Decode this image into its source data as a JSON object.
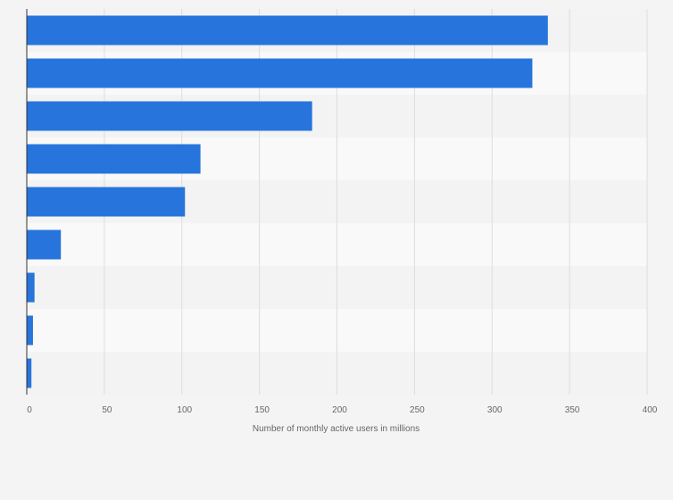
{
  "chart_data": {
    "type": "bar",
    "orientation": "horizontal",
    "categories": [
      "",
      "",
      "",
      "",
      "",
      "",
      "",
      "",
      ""
    ],
    "values": [
      336,
      326,
      184,
      112,
      102,
      22,
      5,
      4,
      3
    ],
    "title": "",
    "xlabel": "Number of monthly active users in millions",
    "ylabel": "",
    "xlim": [
      0,
      400
    ],
    "xticks": [
      0,
      50,
      100,
      150,
      200,
      250,
      300,
      350,
      400
    ],
    "xtick_labels": [
      "0",
      "50",
      "100",
      "150",
      "200",
      "250",
      "300",
      "350",
      "400"
    ],
    "grid": "vertical",
    "legend": "none"
  },
  "colors": {
    "bar": "#2775dc",
    "background": "#f4f4f4",
    "band_dark": "#f3f3f3",
    "band_light": "#f9f9f9",
    "grid": "#dddddd",
    "axis": "#333333",
    "text": "#666666"
  }
}
